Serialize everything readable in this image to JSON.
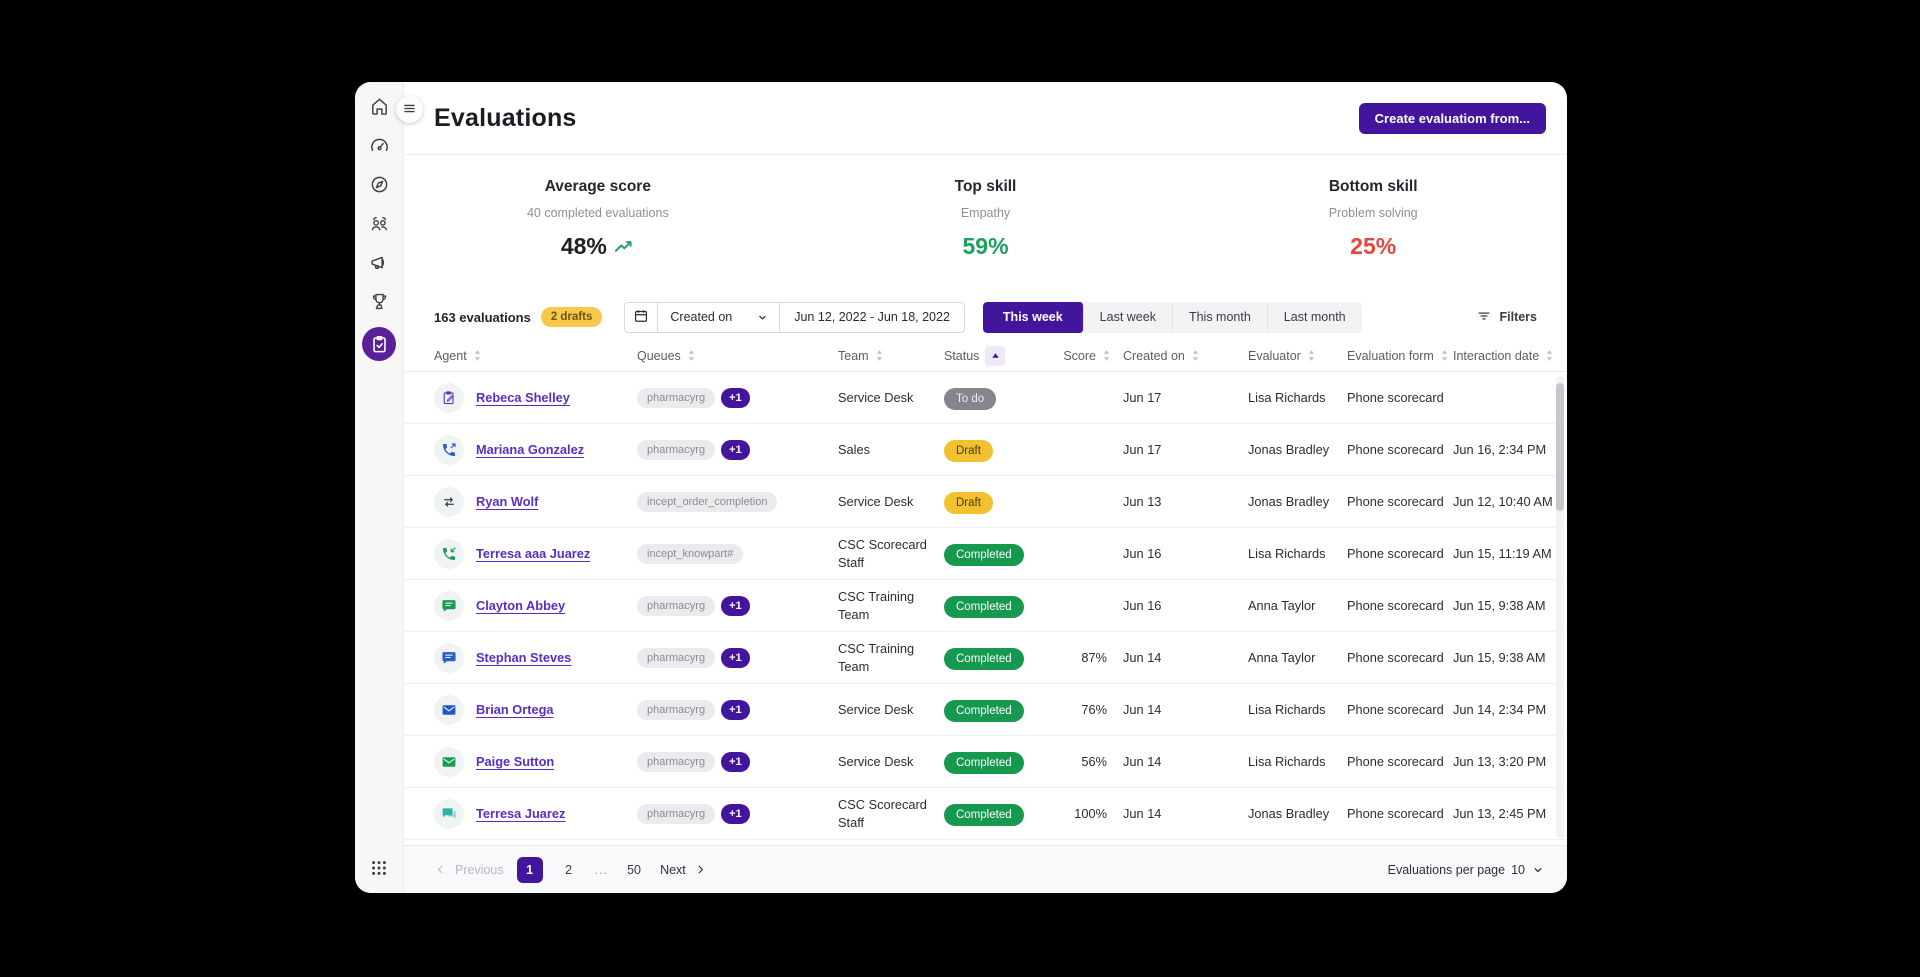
{
  "header": {
    "title": "Evaluations",
    "create_button_label": "Create evaluatiom from..."
  },
  "sidebar": {
    "items": [
      {
        "name": "home",
        "icon": "home"
      },
      {
        "name": "dashboard",
        "icon": "dashboard"
      },
      {
        "name": "explore",
        "icon": "compass"
      },
      {
        "name": "teams",
        "icon": "users"
      },
      {
        "name": "announcements",
        "icon": "megaphone"
      },
      {
        "name": "leaderboard",
        "icon": "trophy"
      },
      {
        "name": "evaluations",
        "icon": "clipboard-check",
        "active": true
      }
    ],
    "bottom_icon": "apps-grid"
  },
  "stats": [
    {
      "label": "Average score",
      "sub": "40 completed evaluations",
      "value": "48%",
      "color": "#202027",
      "trend": true
    },
    {
      "label": "Top skill",
      "sub": "Empathy",
      "value": "59%",
      "color": "#1ba15d",
      "trend": false
    },
    {
      "label": "Bottom skill",
      "sub": "Problem solving",
      "value": "25%",
      "color": "#e8463c",
      "trend": false
    }
  ],
  "toolbar": {
    "count": "163 evaluations",
    "drafts_badge": "2 drafts",
    "calendar_icon": "calendar",
    "date_field_label": "Created on",
    "date_range": "Jun 12, 2022 - Jun 18, 2022",
    "range_tabs": [
      {
        "label": "This week",
        "active": true
      },
      {
        "label": "Last week",
        "active": false
      },
      {
        "label": "This month",
        "active": false
      },
      {
        "label": "Last month",
        "active": false
      }
    ],
    "filters_label": "Filters",
    "filters_icon": "filter"
  },
  "table": {
    "columns": [
      {
        "label": "Agent",
        "sort": "none"
      },
      {
        "label": "Queues",
        "sort": "none"
      },
      {
        "label": "Team",
        "sort": "none"
      },
      {
        "label": "Status",
        "sort": "asc"
      },
      {
        "label": "Score",
        "sort": "none",
        "align": "right"
      },
      {
        "label": "Created on",
        "sort": "none",
        "created": true
      },
      {
        "label": "Evaluator",
        "sort": "none"
      },
      {
        "label": "Evaluation form",
        "sort": "none"
      },
      {
        "label": "Interaction date",
        "sort": "none"
      }
    ],
    "rows": [
      {
        "channel": "note",
        "channel_color": "#5e35b1",
        "agent": "Rebeca Shelley",
        "queues": [
          "pharmacyrg"
        ],
        "more": "+1",
        "team": "Service Desk",
        "status": "To do",
        "status_type": "todo",
        "score": "",
        "created": "Jun 17",
        "evaluator": "Lisa Richards",
        "form": "Phone scorecard",
        "interaction": ""
      },
      {
        "channel": "phone-out",
        "channel_color": "#2b5fc7",
        "agent": "Mariana Gonzalez",
        "queues": [
          "pharmacyrg"
        ],
        "more": "+1",
        "team": "Sales",
        "status": "Draft",
        "status_type": "draft",
        "score": "",
        "created": "Jun 17",
        "evaluator": "Jonas Bradley",
        "form": "Phone scorecard",
        "interaction": "Jun 16, 2:34 PM"
      },
      {
        "channel": "transfer",
        "channel_color": "#3c3c46",
        "agent": "Ryan Wolf",
        "queues": [
          "incept_order_completion"
        ],
        "more": "",
        "team": "Service Desk",
        "status": "Draft",
        "status_type": "draft",
        "score": "",
        "created": "Jun 13",
        "evaluator": "Jonas Bradley",
        "form": "Phone scorecard",
        "interaction": "Jun 12, 10:40 AM"
      },
      {
        "channel": "phone-in",
        "channel_color": "#1d9e55",
        "agent": "Terresa aaa Juarez",
        "queues": [
          "incept_knowpart#"
        ],
        "more": "",
        "team": "CSC Scorecard Staff",
        "status": "Completed",
        "status_type": "completed",
        "score": "",
        "created": "Jun 16",
        "evaluator": "Lisa Richards",
        "form": "Phone scorecard",
        "interaction": "Jun 15, 11:19 AM"
      },
      {
        "channel": "chat",
        "channel_color": "#189e50",
        "agent": "Clayton Abbey",
        "queues": [
          "pharmacyrg"
        ],
        "more": "+1",
        "team": "CSC Training Team",
        "status": "Completed",
        "status_type": "completed",
        "score": "",
        "created": "Jun 16",
        "evaluator": "Anna Taylor",
        "form": "Phone scorecard",
        "interaction": "Jun 15, 9:38 AM"
      },
      {
        "channel": "chat",
        "channel_color": "#2b5fc7",
        "agent": "Stephan Steves",
        "queues": [
          "pharmacyrg"
        ],
        "more": "+1",
        "team": "CSC Training Team",
        "status": "Completed",
        "status_type": "completed",
        "score": "87%",
        "created": "Jun 14",
        "evaluator": "Anna Taylor",
        "form": "Phone scorecard",
        "interaction": "Jun 15, 9:38 AM"
      },
      {
        "channel": "email",
        "channel_color": "#2457c5",
        "agent": "Brian Ortega",
        "queues": [
          "pharmacyrg"
        ],
        "more": "+1",
        "team": "Service Desk",
        "status": "Completed",
        "status_type": "completed",
        "score": "76%",
        "created": "Jun 14",
        "evaluator": "Lisa Richards",
        "form": "Phone scorecard",
        "interaction": "Jun 14, 2:34 PM"
      },
      {
        "channel": "email",
        "channel_color": "#189e50",
        "agent": "Paige Sutton",
        "queues": [
          "pharmacyrg"
        ],
        "more": "+1",
        "team": "Service Desk",
        "status": "Completed",
        "status_type": "completed",
        "score": "56%",
        "created": "Jun 14",
        "evaluator": "Lisa Richards",
        "form": "Phone scorecard",
        "interaction": "Jun 13, 3:20 PM"
      },
      {
        "channel": "chat-double",
        "channel_color": "#2bb3a3",
        "agent": "Terresa Juarez",
        "queues": [
          "pharmacyrg"
        ],
        "more": "+1",
        "team": "CSC Scorecard Staff",
        "status": "Completed",
        "status_type": "completed",
        "score": "100%",
        "created": "Jun 14",
        "evaluator": "Jonas Bradley",
        "form": "Phone scorecard",
        "interaction": "Jun 13, 2:45 PM"
      }
    ]
  },
  "pagination": {
    "previous": "Previous",
    "next": "Next",
    "pages": [
      {
        "label": "1",
        "active": true
      },
      {
        "label": "2",
        "active": false
      },
      {
        "label": "...",
        "ellipsis": true
      },
      {
        "label": "50",
        "active": false
      }
    ],
    "per_page_label": "Evaluations per page",
    "per_page_value": "10"
  },
  "colors": {
    "accent": "#41169c",
    "accent_nav": "#5a2097",
    "positive": "#1ba15d",
    "negative": "#e8463c",
    "draft_badge": "#f1c12f",
    "completed_badge": "#17984f",
    "todo_badge": "#85858d",
    "drafts_pill": "#f6c84c"
  }
}
